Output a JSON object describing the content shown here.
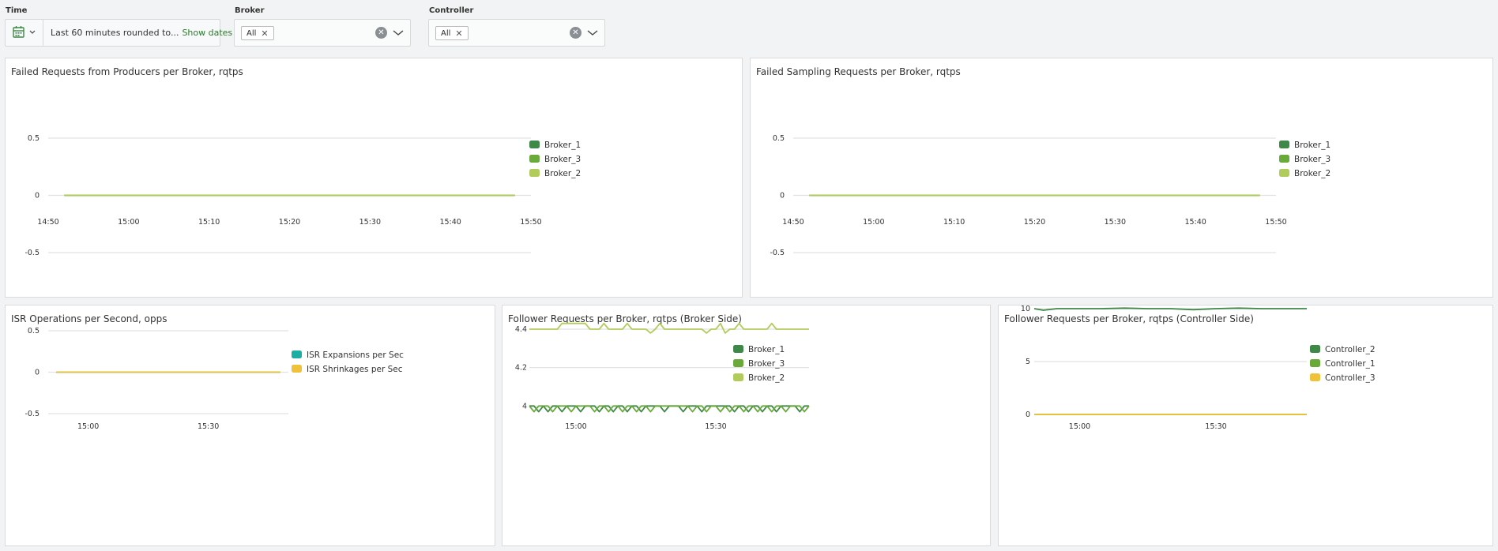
{
  "filters": {
    "time": {
      "label": "Time",
      "value": "Last 60 minutes rounded to...",
      "show_dates": "Show dates"
    },
    "broker": {
      "label": "Broker",
      "tag": "All"
    },
    "controller": {
      "label": "Controller",
      "tag": "All"
    }
  },
  "colors": {
    "dark_green": "#3e8848",
    "mid_green": "#6aaa3a",
    "light_green": "#b2cc5c",
    "teal": "#1aaea5",
    "yellow": "#f0c23a",
    "grid": "#e2e2e2"
  },
  "panels": {
    "failed_producers": {
      "title": "Failed Requests from Producers per Broker, rqtps"
    },
    "failed_sampling": {
      "title": "Failed Sampling Requests per Broker, rqtps"
    },
    "isr_ops": {
      "title": "ISR Operations per Second, opps"
    },
    "follower_broker": {
      "title": "Follower Requests per Broker, rqtps (Broker Side)"
    },
    "follower_controller": {
      "title": "Follower Requests per Broker, rqtps (Controller Side)"
    }
  },
  "chart_data": [
    {
      "id": "failed_producers",
      "type": "line",
      "title": "Failed Requests from Producers per Broker, rqtps",
      "x_ticks": [
        "14:50",
        "15:00",
        "15:10",
        "15:20",
        "15:30",
        "15:40",
        "15:50"
      ],
      "y_ticks": [
        0.5,
        0,
        -0.5
      ],
      "ylim": [
        -0.5,
        0.5
      ],
      "legend": "right",
      "series": [
        {
          "name": "Broker_1",
          "color": "#3e8848",
          "x": [
            "14:52",
            "15:48"
          ],
          "y": [
            0,
            0
          ]
        },
        {
          "name": "Broker_3",
          "color": "#6aaa3a",
          "x": [
            "14:52",
            "15:48"
          ],
          "y": [
            0,
            0
          ]
        },
        {
          "name": "Broker_2",
          "color": "#b2cc5c",
          "x": [
            "14:52",
            "15:48"
          ],
          "y": [
            0,
            0
          ]
        }
      ]
    },
    {
      "id": "failed_sampling",
      "type": "line",
      "title": "Failed Sampling Requests per Broker, rqtps",
      "x_ticks": [
        "14:50",
        "15:00",
        "15:10",
        "15:20",
        "15:30",
        "15:40",
        "15:50"
      ],
      "y_ticks": [
        0.5,
        0,
        -0.5
      ],
      "ylim": [
        -0.5,
        0.5
      ],
      "legend": "right",
      "series": [
        {
          "name": "Broker_1",
          "color": "#3e8848",
          "x": [
            "14:52",
            "15:48"
          ],
          "y": [
            0,
            0
          ]
        },
        {
          "name": "Broker_3",
          "color": "#6aaa3a",
          "x": [
            "14:52",
            "15:48"
          ],
          "y": [
            0,
            0
          ]
        },
        {
          "name": "Broker_2",
          "color": "#b2cc5c",
          "x": [
            "14:52",
            "15:48"
          ],
          "y": [
            0,
            0
          ]
        }
      ]
    },
    {
      "id": "isr_ops",
      "type": "line",
      "title": "ISR Operations per Second, opps",
      "x_ticks": [
        "15:00",
        "15:30"
      ],
      "y_ticks": [
        0.5,
        0,
        -0.5
      ],
      "ylim": [
        -0.5,
        0.5
      ],
      "legend": "right",
      "series": [
        {
          "name": "ISR Expansions per Sec",
          "color": "#1aaea5",
          "x": [
            "14:52",
            "15:48"
          ],
          "y": [
            0,
            0
          ]
        },
        {
          "name": "ISR Shrinkages per Sec",
          "color": "#f0c23a",
          "x": [
            "14:52",
            "15:48"
          ],
          "y": [
            0,
            0
          ]
        }
      ]
    },
    {
      "id": "follower_broker",
      "type": "line",
      "title": "Follower Requests per Broker, rqtps (Broker Side)",
      "x_ticks": [
        "15:00",
        "15:30"
      ],
      "y_ticks": [
        4.4,
        4.2,
        4.0
      ],
      "ylim": [
        3.96,
        4.47
      ],
      "legend": "right",
      "series": [
        {
          "name": "Broker_1",
          "color": "#3e8848",
          "x": [
            "14:50",
            "14:51",
            "14:52",
            "14:53",
            "14:54",
            "14:55",
            "14:56",
            "14:57",
            "14:58",
            "14:59",
            "15:00",
            "15:01",
            "15:02",
            "15:03",
            "15:04",
            "15:05",
            "15:06",
            "15:07",
            "15:08",
            "15:09",
            "15:10",
            "15:11",
            "15:12",
            "15:13",
            "15:14",
            "15:15",
            "15:16",
            "15:17",
            "15:18",
            "15:19",
            "15:20",
            "15:21",
            "15:22",
            "15:23",
            "15:24",
            "15:25",
            "15:26",
            "15:27",
            "15:28",
            "15:29",
            "15:30",
            "15:31",
            "15:32",
            "15:33",
            "15:34",
            "15:35",
            "15:36",
            "15:37",
            "15:38",
            "15:39",
            "15:40",
            "15:41",
            "15:42",
            "15:43",
            "15:44",
            "15:45",
            "15:46",
            "15:47",
            "15:48",
            "15:49",
            "15:50"
          ],
          "y": [
            4.0,
            4.0,
            3.97,
            4.0,
            3.97,
            4.0,
            4.0,
            3.97,
            4.0,
            4.0,
            4.0,
            3.97,
            4.0,
            4.0,
            4.0,
            3.97,
            4.0,
            4.0,
            3.97,
            4.0,
            4.0,
            3.97,
            4.0,
            4.0,
            3.97,
            4.0,
            4.0,
            4.0,
            4.0,
            3.97,
            4.0,
            4.0,
            4.0,
            3.97,
            4.0,
            4.0,
            4.0,
            3.97,
            4.0,
            4.0,
            4.0,
            4.0,
            4.0,
            4.0,
            3.97,
            4.0,
            4.0,
            3.97,
            4.0,
            4.0,
            3.97,
            4.0,
            4.0,
            3.97,
            4.0,
            4.0,
            4.0,
            4.0,
            3.97,
            4.0,
            4.0
          ]
        },
        {
          "name": "Broker_3",
          "color": "#6aaa3a",
          "x": [
            "14:50",
            "14:51",
            "14:52",
            "14:53",
            "14:54",
            "14:55",
            "14:56",
            "14:57",
            "14:58",
            "14:59",
            "15:00",
            "15:01",
            "15:02",
            "15:03",
            "15:04",
            "15:05",
            "15:06",
            "15:07",
            "15:08",
            "15:09",
            "15:10",
            "15:11",
            "15:12",
            "15:13",
            "15:14",
            "15:15",
            "15:16",
            "15:17",
            "15:18",
            "15:19",
            "15:20",
            "15:21",
            "15:22",
            "15:23",
            "15:24",
            "15:25",
            "15:26",
            "15:27",
            "15:28",
            "15:29",
            "15:30",
            "15:31",
            "15:32",
            "15:33",
            "15:34",
            "15:35",
            "15:36",
            "15:37",
            "15:38",
            "15:39",
            "15:40",
            "15:41",
            "15:42",
            "15:43",
            "15:44",
            "15:45",
            "15:46",
            "15:47",
            "15:48",
            "15:49",
            "15:50"
          ],
          "y": [
            4.0,
            3.97,
            4.0,
            4.0,
            4.0,
            3.97,
            4.0,
            4.0,
            4.0,
            3.97,
            4.0,
            4.0,
            4.0,
            4.0,
            3.97,
            4.0,
            4.0,
            3.97,
            4.0,
            4.0,
            3.97,
            4.0,
            4.0,
            3.97,
            4.0,
            4.0,
            3.97,
            4.0,
            4.0,
            4.0,
            4.0,
            4.0,
            4.0,
            4.0,
            4.0,
            3.97,
            4.0,
            4.0,
            3.97,
            4.0,
            4.0,
            3.97,
            4.0,
            3.97,
            4.0,
            4.0,
            3.97,
            4.0,
            4.0,
            3.97,
            4.0,
            4.0,
            3.97,
            4.0,
            4.0,
            3.97,
            4.0,
            4.0,
            4.0,
            3.97,
            4.0
          ]
        },
        {
          "name": "Broker_2",
          "color": "#b2cc5c",
          "x": [
            "14:50",
            "14:51",
            "14:52",
            "14:53",
            "14:54",
            "14:55",
            "14:56",
            "14:57",
            "14:58",
            "14:59",
            "15:00",
            "15:01",
            "15:02",
            "15:03",
            "15:04",
            "15:05",
            "15:06",
            "15:07",
            "15:08",
            "15:09",
            "15:10",
            "15:11",
            "15:12",
            "15:13",
            "15:14",
            "15:15",
            "15:16",
            "15:17",
            "15:18",
            "15:19",
            "15:20",
            "15:21",
            "15:22",
            "15:23",
            "15:24",
            "15:25",
            "15:26",
            "15:27",
            "15:28",
            "15:29",
            "15:30",
            "15:31",
            "15:32",
            "15:33",
            "15:34",
            "15:35",
            "15:36",
            "15:37",
            "15:38",
            "15:39",
            "15:40",
            "15:41",
            "15:42",
            "15:43",
            "15:44",
            "15:45",
            "15:46",
            "15:47",
            "15:48",
            "15:49",
            "15:50"
          ],
          "y": [
            4.4,
            4.4,
            4.4,
            4.4,
            4.4,
            4.4,
            4.4,
            4.43,
            4.43,
            4.43,
            4.43,
            4.43,
            4.43,
            4.4,
            4.4,
            4.4,
            4.43,
            4.4,
            4.4,
            4.4,
            4.4,
            4.43,
            4.4,
            4.4,
            4.4,
            4.4,
            4.38,
            4.4,
            4.43,
            4.4,
            4.4,
            4.4,
            4.4,
            4.4,
            4.4,
            4.4,
            4.4,
            4.4,
            4.38,
            4.4,
            4.4,
            4.43,
            4.38,
            4.4,
            4.4,
            4.43,
            4.4,
            4.4,
            4.4,
            4.4,
            4.4,
            4.4,
            4.43,
            4.4,
            4.4,
            4.4,
            4.4,
            4.4,
            4.4,
            4.4,
            4.4
          ]
        }
      ]
    },
    {
      "id": "follower_controller",
      "type": "line",
      "title": "Follower Requests per Broker, rqtps (Controller Side)",
      "x_ticks": [
        "15:00",
        "15:30"
      ],
      "y_ticks": [
        10,
        5,
        0
      ],
      "ylim": [
        0,
        10
      ],
      "legend": "right",
      "series": [
        {
          "name": "Controller_2",
          "color": "#3e8848",
          "x": [
            "14:50",
            "14:52",
            "14:55",
            "15:00",
            "15:05",
            "15:10",
            "15:15",
            "15:20",
            "15:25",
            "15:30",
            "15:35",
            "15:40",
            "15:45",
            "15:50"
          ],
          "y": [
            10.0,
            9.85,
            10.0,
            10.0,
            10.0,
            10.05,
            10.0,
            10.0,
            9.9,
            10.0,
            10.05,
            10.0,
            10.0,
            10.0
          ]
        },
        {
          "name": "Controller_1",
          "color": "#6aaa3a",
          "x": [
            "14:50",
            "15:50"
          ],
          "y": [
            0,
            0
          ]
        },
        {
          "name": "Controller_3",
          "color": "#f0c23a",
          "x": [
            "14:50",
            "15:50"
          ],
          "y": [
            0,
            0
          ]
        }
      ]
    }
  ]
}
